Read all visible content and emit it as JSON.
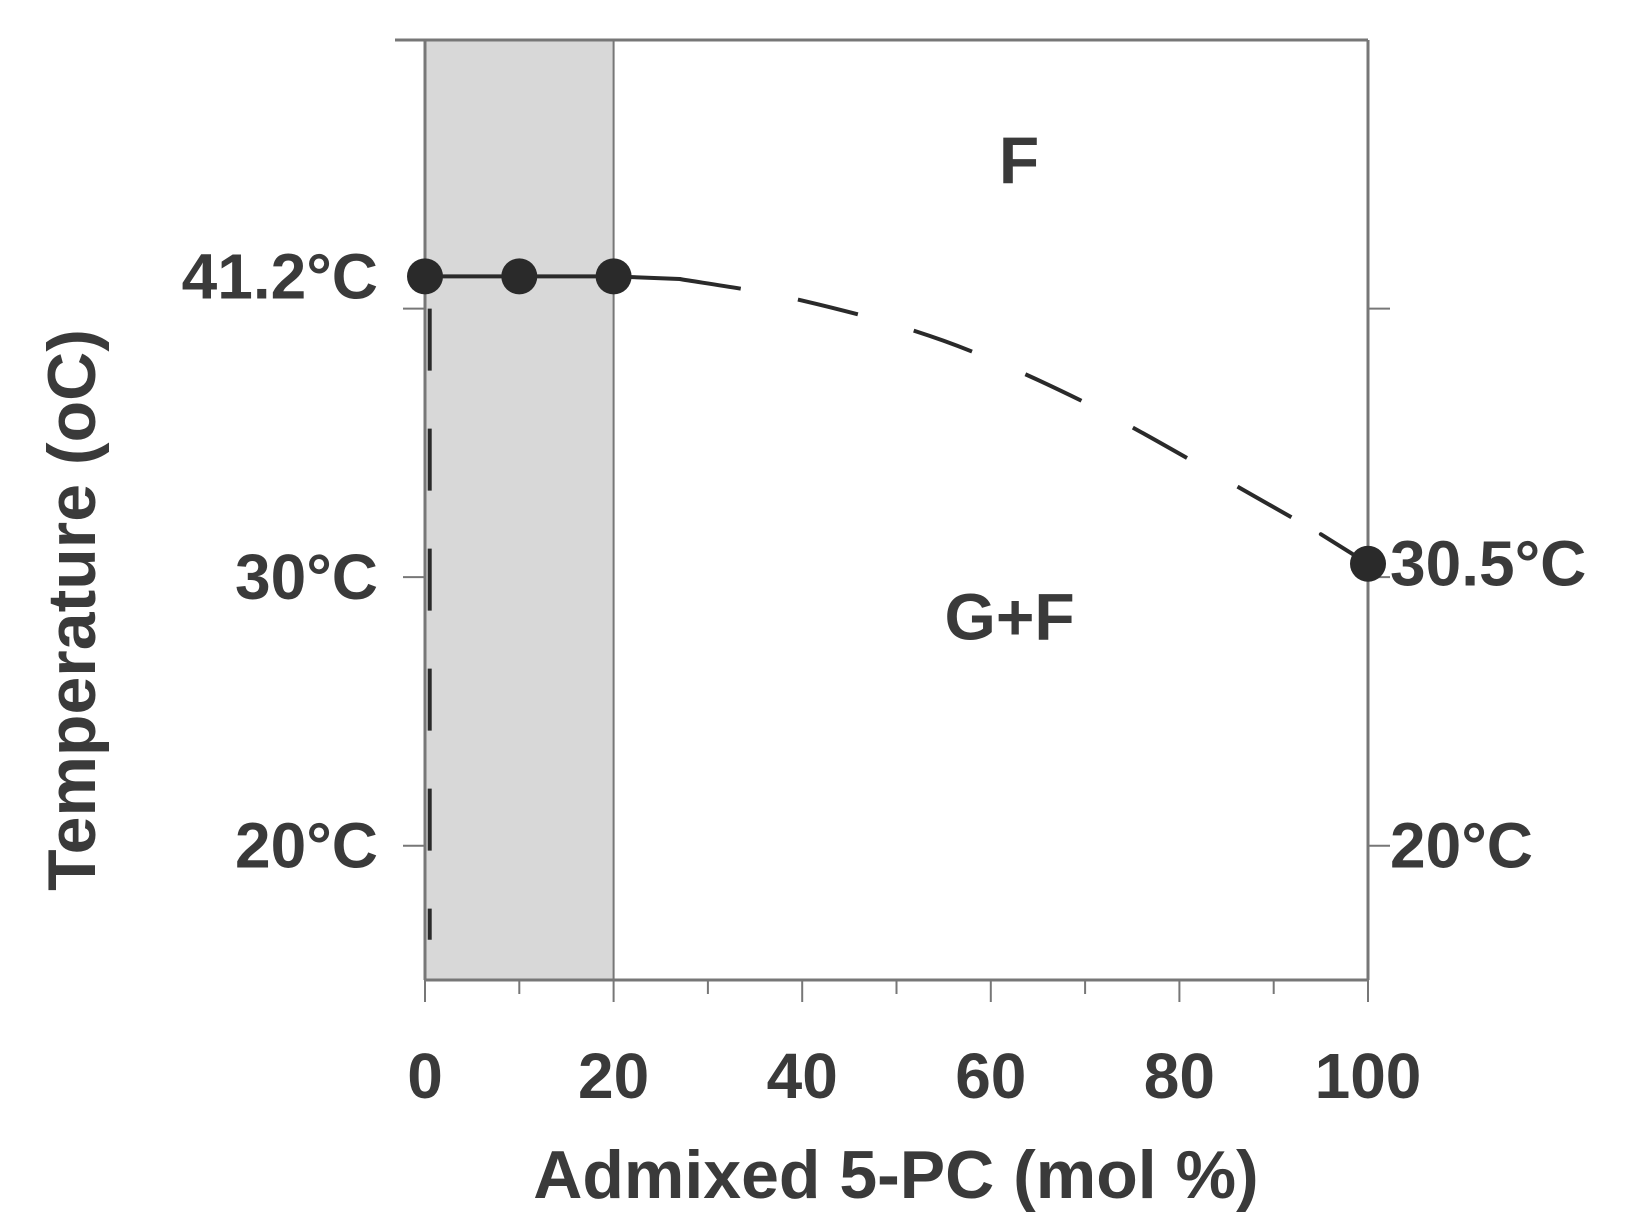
{
  "chart_data": {
    "type": "line",
    "xlabel": "Admixed 5-PC (mol %)",
    "ylabel": "Temperature (oC)",
    "xlim": [
      0,
      100
    ],
    "ylim": [
      15,
      50
    ],
    "x_ticks": [
      0,
      20,
      40,
      60,
      80,
      100
    ],
    "x_tick_labels": [
      "0",
      "20",
      "40",
      "60",
      "80",
      "100"
    ],
    "x_minor_ticks": [
      10,
      30,
      50,
      70,
      90
    ],
    "y_ticks": [
      20,
      30,
      40
    ],
    "left_temp_labels": [
      {
        "value": 41.2,
        "label": "41.2°C"
      },
      {
        "value": 30,
        "label": "30°C"
      },
      {
        "value": 20,
        "label": "20°C"
      }
    ],
    "right_temp_labels": [
      {
        "value": 30.5,
        "label": "30.5°C"
      },
      {
        "value": 20,
        "label": "20°C"
      }
    ],
    "shaded_region": {
      "x_start": 0,
      "x_end": 20,
      "color": "#d8d8d8"
    },
    "region_labels": [
      {
        "text": "F",
        "x": 63,
        "y": 45.5
      },
      {
        "text": "G+F",
        "x": 62,
        "y": 28.5
      }
    ],
    "data_points": [
      {
        "x": 0,
        "y": 41.2
      },
      {
        "x": 10,
        "y": 41.2
      },
      {
        "x": 20,
        "y": 41.2
      },
      {
        "x": 100,
        "y": 30.5
      }
    ],
    "solid_segments": [
      [
        {
          "x": 0,
          "y": 41.2
        },
        {
          "x": 20,
          "y": 41.2
        }
      ],
      [
        {
          "x": 20,
          "y": 41.2
        },
        {
          "x": 27,
          "y": 41.1
        }
      ],
      [
        {
          "x": 95,
          "y": 31.6
        },
        {
          "x": 100,
          "y": 30.5
        }
      ]
    ],
    "dashed_curve": [
      {
        "x": 27,
        "y": 41.1
      },
      {
        "x": 40,
        "y": 40.3
      },
      {
        "x": 55,
        "y": 38.8
      },
      {
        "x": 70,
        "y": 36.5
      },
      {
        "x": 85,
        "y": 33.6
      },
      {
        "x": 95,
        "y": 31.6
      }
    ],
    "dashed_vertical": {
      "x": 0.5,
      "y_start": 40,
      "y_end": 16.5
    },
    "colors": {
      "line": "#2a2a2a",
      "axis": "#777777",
      "shade": "#d8d8d8",
      "text": "#3a3a3a"
    }
  }
}
